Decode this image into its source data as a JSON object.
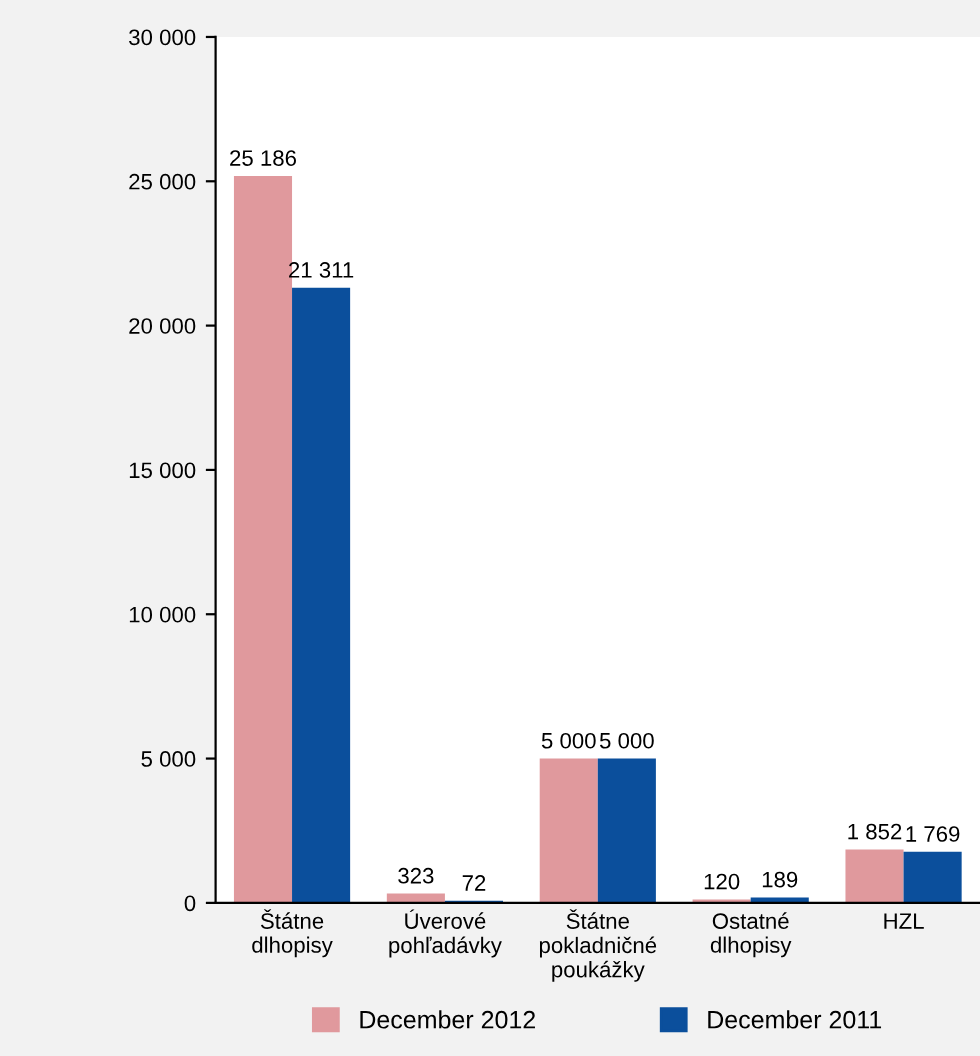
{
  "chart_data": {
    "type": "bar",
    "categories": [
      "Štátne\ndlhopisy",
      "Úverové\npohľadávky",
      "Štátne\npokladničné\npoukážky",
      "Ostatné\ndlhopisy",
      "HZL"
    ],
    "series": [
      {
        "name": "December 2012",
        "color": "#e0999d",
        "values": [
          25186,
          323,
          5000,
          120,
          1852
        ],
        "value_labels": [
          "25 186",
          "323",
          "5 000",
          "120",
          "1 852"
        ]
      },
      {
        "name": "December 2011",
        "color": "#0b4f9c",
        "values": [
          21311,
          72,
          5000,
          189,
          1769
        ],
        "value_labels": [
          "21 311",
          "72",
          "5 000",
          "189",
          "1 769"
        ]
      }
    ],
    "ylim": [
      0,
      30000
    ],
    "yticks": [
      {
        "value": 0,
        "label": "0"
      },
      {
        "value": 5000,
        "label": "5 000"
      },
      {
        "value": 10000,
        "label": "10 000"
      },
      {
        "value": 15000,
        "label": "15 000"
      },
      {
        "value": 20000,
        "label": "20 000"
      },
      {
        "value": 25000,
        "label": "25 000"
      },
      {
        "value": 30000,
        "label": "30 000"
      }
    ],
    "grid": false,
    "legend": "bottom"
  }
}
